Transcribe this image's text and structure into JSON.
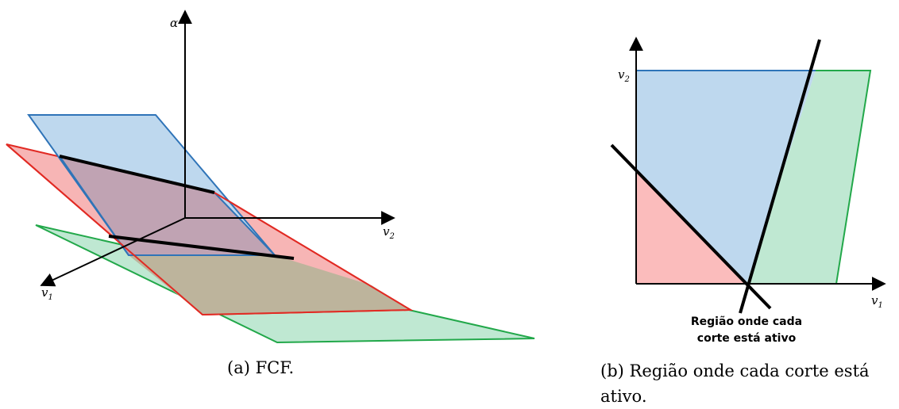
{
  "panel_a": {
    "caption": "(a) FCF.",
    "axis_alpha": "α",
    "axis_v1": "v",
    "axis_v1_sub": "1",
    "axis_v2": "v",
    "axis_v2_sub": "2",
    "colors": {
      "blue_fill": "#bed8ee",
      "blue_stroke": "#2f74b8",
      "red_fill": "#f7b5b5",
      "red_stroke": "#e12a23",
      "green_fill": "#bfe8d2",
      "green_stroke": "#22a84a",
      "overlap_fill": "#c0a3b3",
      "overlap_low_fill": "#bdb49c"
    }
  },
  "panel_b": {
    "caption": "(b) Região onde cada corte está ativo.",
    "axis_v1": "v",
    "axis_v1_sub": "1",
    "axis_v2": "v",
    "axis_v2_sub": "2",
    "annotation_line1": "Região onde cada",
    "annotation_line2": "corte está ativo",
    "colors": {
      "blue_fill": "#bed8ee",
      "blue_stroke": "#2f74b8",
      "red_fill": "#fbbcbc",
      "green_fill": "#bfe8d2",
      "green_stroke": "#22a84a"
    }
  }
}
